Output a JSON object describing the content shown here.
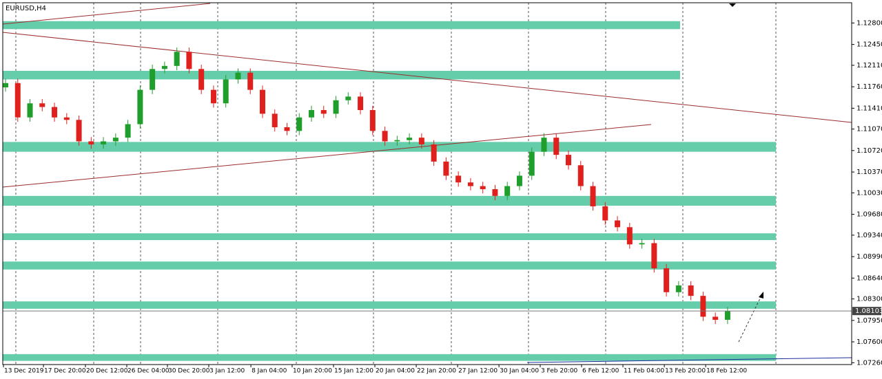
{
  "chart_data": {
    "type": "candlestick",
    "title": "EURUSD,H4",
    "up_color": "#1f9e2c",
    "down_color": "#e0201c",
    "zone_color": "#66cdaa",
    "ylim": [
      1.0723,
      1.1313
    ],
    "xlim": [
      -0.225,
      69.14
    ],
    "yticks": [
      {
        "value": 1.128,
        "label": "1.12800"
      },
      {
        "value": 1.1245,
        "label": "1.12450"
      },
      {
        "value": 1.1211,
        "label": "1.12110"
      },
      {
        "value": 1.1176,
        "label": "1.11760"
      },
      {
        "value": 1.1141,
        "label": "1.11410"
      },
      {
        "value": 1.1107,
        "label": "1.11070"
      },
      {
        "value": 1.1072,
        "label": "1.10720"
      },
      {
        "value": 1.1037,
        "label": "1.10370"
      },
      {
        "value": 1.1003,
        "label": "1.10030"
      },
      {
        "value": 1.0968,
        "label": "1.09680"
      },
      {
        "value": 1.0934,
        "label": "1.09340"
      },
      {
        "value": 1.0899,
        "label": "1.08990"
      },
      {
        "value": 1.0864,
        "label": "1.08640"
      },
      {
        "value": 1.083,
        "label": "1.08300"
      },
      {
        "value": 1.0795,
        "label": "1.07950"
      },
      {
        "value": 1.076,
        "label": "1.07600"
      },
      {
        "value": 1.0726,
        "label": "1.07260"
      }
    ],
    "xticks": [
      {
        "value": -0.17,
        "label": "13 Dec 2019"
      },
      {
        "value": 3.1,
        "label": "17 Dec 20:00"
      },
      {
        "value": 6.53,
        "label": "20 Dec 12:00"
      },
      {
        "value": 9.91,
        "label": "26 Dec 04:00"
      },
      {
        "value": 13.23,
        "label": "30 Dec 20:00"
      },
      {
        "value": 16.61,
        "label": "3 Jan 12:00"
      },
      {
        "value": 20.05,
        "label": "8 Jan 04:00"
      },
      {
        "value": 23.42,
        "label": "10 Jan 20:00"
      },
      {
        "value": 26.8,
        "label": "15 Jan 12:00"
      },
      {
        "value": 30.18,
        "label": "20 Jan 04:00"
      },
      {
        "value": 33.56,
        "label": "22 Jan 20:00"
      },
      {
        "value": 36.94,
        "label": "27 Jan 12:00"
      },
      {
        "value": 40.32,
        "label": "30 Jan 04:00"
      },
      {
        "value": 43.69,
        "label": "3 Feb 20:00"
      },
      {
        "value": 47.07,
        "label": "6 Feb 12:00"
      },
      {
        "value": 50.45,
        "label": "11 Feb 04:00"
      },
      {
        "value": 53.83,
        "label": "13 Feb 20:00"
      },
      {
        "value": 57.21,
        "label": "18 Feb 12:00"
      }
    ],
    "last_price": {
      "value": 1.08103,
      "label": "1.08103"
    },
    "zones": [
      {
        "low": 1.127,
        "high": 1.1283,
        "end": 55.12
      },
      {
        "low": 1.1188,
        "high": 1.1202,
        "end": 55.12
      },
      {
        "low": 1.107,
        "high": 1.1086,
        "end": 62.95
      },
      {
        "low": 1.0982,
        "high": 1.0998,
        "end": 62.95
      },
      {
        "low": 1.0926,
        "high": 1.0937,
        "end": 62.95
      },
      {
        "low": 1.0878,
        "high": 1.0891,
        "end": 62.95
      },
      {
        "low": 1.0814,
        "high": 1.0826,
        "end": 62.95
      },
      {
        "low": 1.0729,
        "high": 1.074,
        "end": 62.95
      }
    ],
    "ohlc": [
      [
        1.1175,
        1.1189,
        1.1168,
        1.1182
      ],
      [
        1.1182,
        1.1189,
        1.1119,
        1.1126
      ],
      [
        1.1126,
        1.1156,
        1.1119,
        1.1149
      ],
      [
        1.1149,
        1.1156,
        1.1136,
        1.1143
      ],
      [
        1.1143,
        1.115,
        1.1119,
        1.1126
      ],
      [
        1.1126,
        1.1133,
        1.1115,
        1.1122
      ],
      [
        1.1122,
        1.1129,
        1.108,
        1.1087
      ],
      [
        1.1087,
        1.1094,
        1.1075,
        1.1082
      ],
      [
        1.1082,
        1.1094,
        1.1075,
        1.1087
      ],
      [
        1.1087,
        1.11,
        1.108,
        1.1093
      ],
      [
        1.1093,
        1.1122,
        1.1086,
        1.1115
      ],
      [
        1.1115,
        1.1178,
        1.1108,
        1.1171
      ],
      [
        1.1171,
        1.1212,
        1.1164,
        1.1205
      ],
      [
        1.1205,
        1.1217,
        1.1198,
        1.121
      ],
      [
        1.121,
        1.124,
        1.1203,
        1.1233
      ],
      [
        1.1233,
        1.124,
        1.1198,
        1.1205
      ],
      [
        1.1205,
        1.1212,
        1.1164,
        1.1171
      ],
      [
        1.1171,
        1.1178,
        1.1142,
        1.1149
      ],
      [
        1.1149,
        1.1195,
        1.1142,
        1.1188
      ],
      [
        1.1188,
        1.1206,
        1.1181,
        1.1199
      ],
      [
        1.1199,
        1.1206,
        1.1164,
        1.1171
      ],
      [
        1.1171,
        1.1178,
        1.1125,
        1.1132
      ],
      [
        1.1132,
        1.1139,
        1.1103,
        1.111
      ],
      [
        1.111,
        1.1117,
        1.1097,
        1.1104
      ],
      [
        1.1104,
        1.1133,
        1.1097,
        1.1126
      ],
      [
        1.1126,
        1.1145,
        1.1119,
        1.1138
      ],
      [
        1.1138,
        1.1145,
        1.1125,
        1.1132
      ],
      [
        1.1132,
        1.1161,
        1.1125,
        1.1154
      ],
      [
        1.1154,
        1.1167,
        1.1147,
        1.116
      ],
      [
        1.116,
        1.1167,
        1.1131,
        1.1138
      ],
      [
        1.1138,
        1.1145,
        1.1097,
        1.1104
      ],
      [
        1.1104,
        1.1111,
        1.108,
        1.1087
      ],
      [
        1.1087,
        1.1096,
        1.108,
        1.1089
      ],
      [
        1.1089,
        1.11,
        1.1082,
        1.1093
      ],
      [
        1.1093,
        1.11,
        1.1075,
        1.1082
      ],
      [
        1.1082,
        1.1089,
        1.1047,
        1.1054
      ],
      [
        1.1054,
        1.1061,
        1.1024,
        1.1031
      ],
      [
        1.1031,
        1.1038,
        1.1013,
        1.102
      ],
      [
        1.102,
        1.1027,
        1.1007,
        1.1014
      ],
      [
        1.1014,
        1.1021,
        1.1002,
        1.1009
      ],
      [
        1.1009,
        1.1016,
        1.0991,
        1.0998
      ],
      [
        1.0998,
        1.1021,
        1.0991,
        1.1014
      ],
      [
        1.1014,
        1.1038,
        1.1007,
        1.1031
      ],
      [
        1.1031,
        1.1077,
        1.1024,
        1.107
      ],
      [
        1.107,
        1.11,
        1.1063,
        1.1093
      ],
      [
        1.1093,
        1.11,
        1.1058,
        1.1065
      ],
      [
        1.1065,
        1.1072,
        1.1041,
        1.1048
      ],
      [
        1.1048,
        1.1055,
        1.1007,
        1.1014
      ],
      [
        1.1014,
        1.1021,
        1.0974,
        1.0981
      ],
      [
        1.0981,
        1.0988,
        1.0951,
        1.0958
      ],
      [
        1.0958,
        1.0965,
        1.094,
        1.0947
      ],
      [
        1.0947,
        1.0954,
        1.0912,
        1.0919
      ],
      [
        1.0919,
        1.0928,
        1.0912,
        1.0921
      ],
      [
        1.0921,
        1.0928,
        1.0873,
        1.088
      ],
      [
        1.088,
        1.0887,
        1.0834,
        1.0841
      ],
      [
        1.0841,
        1.0859,
        1.0834,
        1.0852
      ],
      [
        1.0852,
        1.0859,
        1.0828,
        1.0835
      ],
      [
        1.0835,
        1.0842,
        1.0794,
        1.0801
      ],
      [
        1.0801,
        1.0808,
        1.0789,
        1.0796
      ],
      [
        1.0796,
        1.0817,
        1.0789,
        1.081
      ]
    ]
  }
}
